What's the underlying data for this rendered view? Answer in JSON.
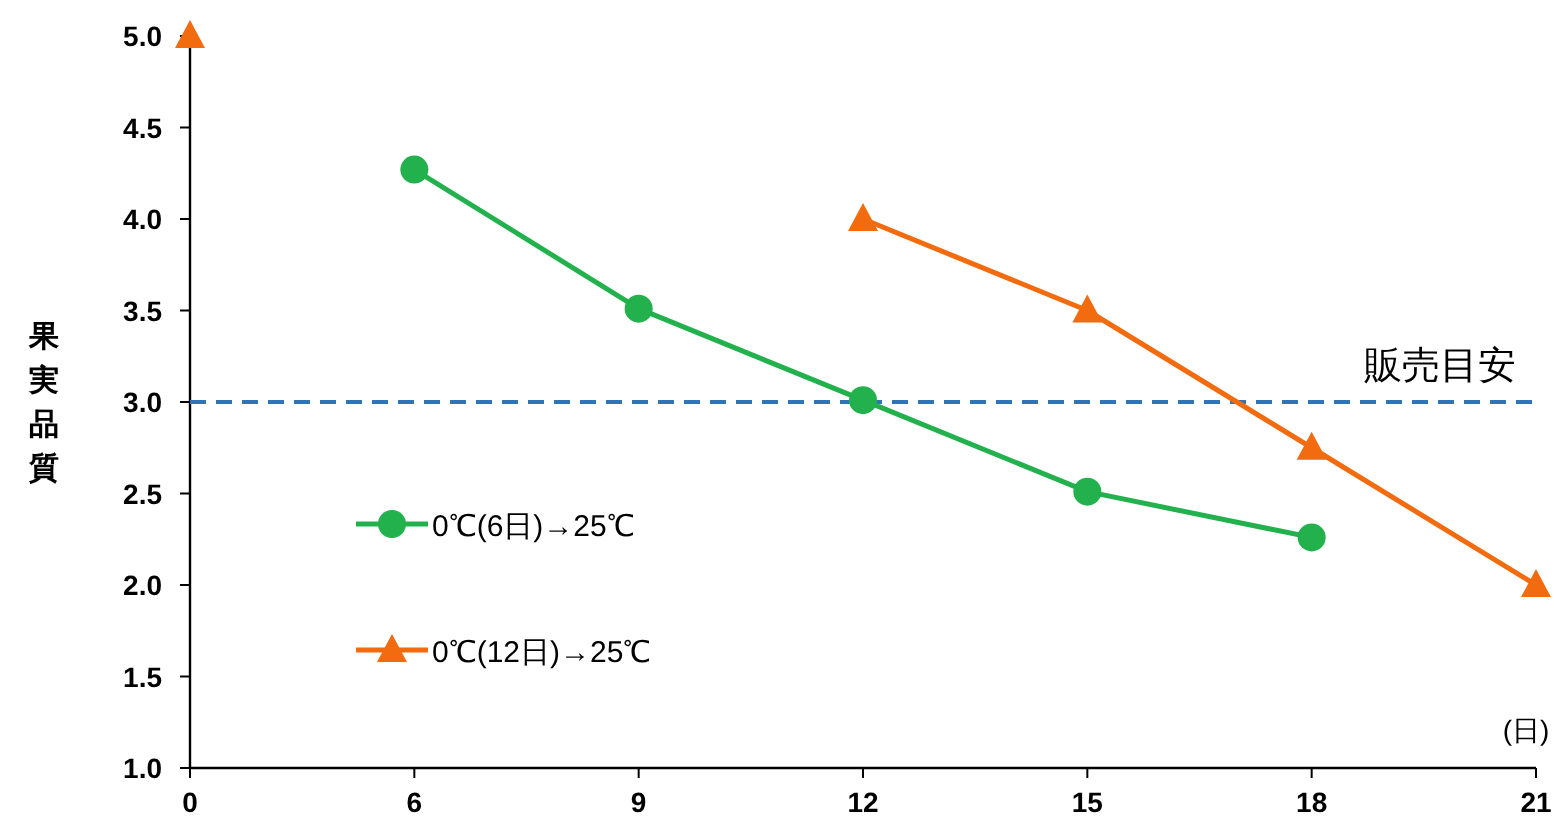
{
  "chart_data": {
    "type": "line",
    "ylabel": "果実品質",
    "xlabel": "(日)",
    "categories": [
      "0",
      "6",
      "9",
      "12",
      "15",
      "18",
      "21"
    ],
    "series": [
      {
        "name": "0℃(6日)→25℃",
        "color": "#22b14c",
        "marker": "circle",
        "values": [
          null,
          4.27,
          3.51,
          3.01,
          2.51,
          2.26,
          null
        ]
      },
      {
        "name": "0℃(12日)→25℃",
        "color": "#f26b0f",
        "marker": "triangle",
        "values": [
          5.0,
          null,
          null,
          4.0,
          3.5,
          2.75,
          2.0
        ]
      }
    ],
    "ylim": [
      1.0,
      5.0
    ],
    "yticks": [
      {
        "value": 1.0,
        "label": "1.0"
      },
      {
        "value": 1.5,
        "label": "1.5"
      },
      {
        "value": 2.0,
        "label": "2.0"
      },
      {
        "value": 2.5,
        "label": "2.5"
      },
      {
        "value": 3.0,
        "label": "3.0"
      },
      {
        "value": 3.5,
        "label": "3.5"
      },
      {
        "value": 4.0,
        "label": "4.0"
      },
      {
        "value": 4.5,
        "label": "4.5"
      },
      {
        "value": 5.0,
        "label": "5.0"
      }
    ],
    "ref_lines": [
      {
        "axis": "y",
        "value": 3.0,
        "label": "販売目安",
        "color": "#2e75b6",
        "line_style": "dashed"
      }
    ],
    "legend": "left",
    "grid": false
  }
}
